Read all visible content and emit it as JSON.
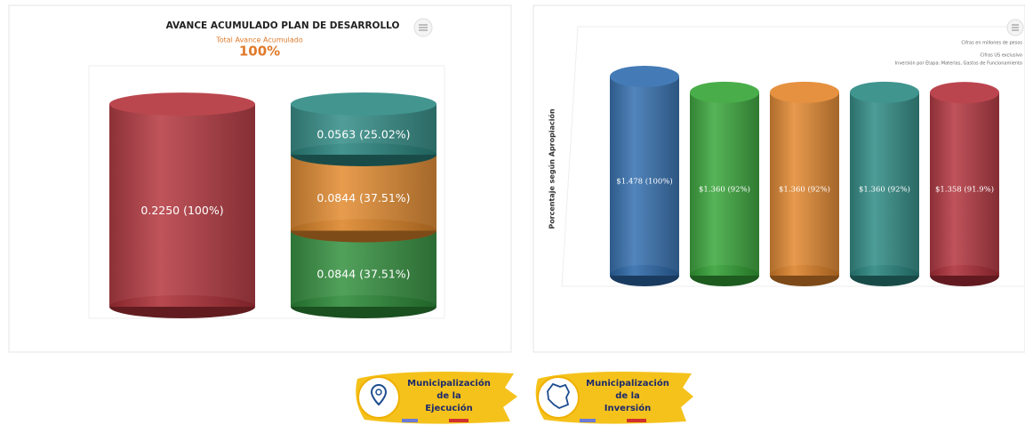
{
  "chart_data": [
    {
      "type": "cylinder-stack",
      "title": "AVANCE ACUMULADO PLAN DE DESARROLLO",
      "subtitle": "Total Avance Acumulado",
      "headline": "100%",
      "stacks": [
        {
          "segments": [
            {
              "value": 0.225,
              "value_label": "0.2250 (100%)",
              "color": "#b3323a"
            }
          ]
        },
        {
          "segments": [
            {
              "value": 0.0844,
              "value_label": "0.0844 (37.51%)",
              "color": "#2f8f3a"
            },
            {
              "value": 0.0844,
              "value_label": "0.0844 (37.51%)",
              "color": "#e3892b"
            },
            {
              "value": 0.0563,
              "value_label": "0.0563 (25.02%)",
              "color": "#2e8a84"
            }
          ]
        }
      ]
    },
    {
      "type": "cylinder",
      "y_label": "Porcentaje según Apropiación",
      "notes": [
        "Cifras en millones de pesos",
        "Cifras US exclusivo",
        "Inversión por Etapa: Materias, Gastos de Funcionamiento"
      ],
      "categories": [
        null,
        null,
        null,
        null,
        null
      ],
      "values": [
        1.478,
        1.36,
        1.36,
        1.36,
        1.358
      ],
      "value_labels": [
        "$1.478 (100%)",
        "$1.360 (92%)",
        "$1.360 (92%)",
        "$1.360 (92%)",
        "$1.358 (91.9%)"
      ],
      "colors": [
        "#2f6cae",
        "#35a536",
        "#e3852b",
        "#2b8982",
        "#b3303a"
      ]
    }
  ],
  "buttons": [
    {
      "line1": "Municipalización",
      "line2": "de la",
      "line3": "Ejecución"
    },
    {
      "line1": "Municipalización",
      "line2": "de la",
      "line3": "Inversión"
    }
  ]
}
